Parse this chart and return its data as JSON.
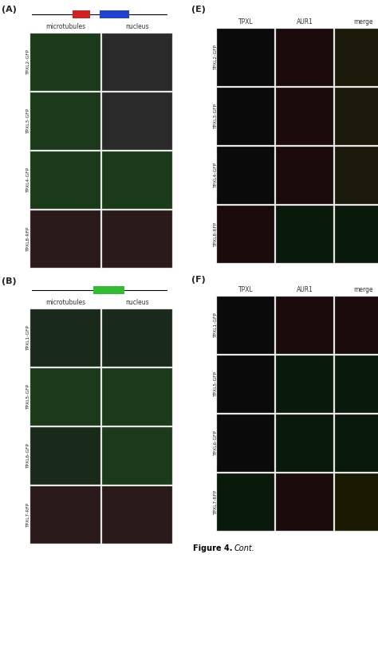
{
  "fig_width": 4.74,
  "fig_height": 8.18,
  "dpi": 100,
  "bg_color": "#ffffff",
  "panel_A_label": "(A)",
  "panel_B_label": "(B)",
  "panel_E_label": "(E)",
  "panel_F_label": "(F)",
  "section_A_col_labels": [
    "microtubules",
    "nucleus"
  ],
  "section_E_col_labels": [
    "TPXL",
    "AUR1",
    "merge"
  ],
  "section_F_col_labels": [
    "TPXL",
    "AUR1",
    "merge"
  ],
  "section_A_row_labels": [
    "TPXL2-GFP",
    "TPXL3-GFP",
    "TPXL4-GFP",
    "TPXL8-RFP"
  ],
  "section_B_row_labels": [
    "TPXL1-GFP",
    "TPXL5-GFP",
    "TPXL6-GFP",
    "TPXL7-RFP"
  ],
  "section_E_row_labels": [
    "TPXL2-GFP",
    "TPXL3-GFP",
    "TPXL4-GFP",
    "TPXL8-RFP"
  ],
  "section_F_row_labels": [
    "TPXL1-GFP",
    "TPXL5-GFP",
    "TPXL6-GFP",
    "TPXL7-RFP"
  ],
  "figure_caption": "Figure 4.",
  "figure_caption_italic": "Cont.",
  "cell_colors_A": [
    [
      "#1a3a1a",
      "#2a2a2a"
    ],
    [
      "#1a3a1a",
      "#2a2a2a"
    ],
    [
      "#1a3a1a",
      "#1a3a1a"
    ],
    [
      "#2a1a1a",
      "#2a1a1a"
    ]
  ],
  "cell_colors_B": [
    [
      "#1a2a1a",
      "#1a2a1a"
    ],
    [
      "#1a3a1a",
      "#1a3a1a"
    ],
    [
      "#1a2a1a",
      "#1a3a1a"
    ],
    [
      "#2a1a1a",
      "#2a1a1a"
    ]
  ],
  "cell_colors_E": [
    [
      "#0a0a0a",
      "#1a0a0a",
      "#1a1a0a"
    ],
    [
      "#0a0a0a",
      "#1a0a0a",
      "#1a1a0a"
    ],
    [
      "#0a0a0a",
      "#1a0a0a",
      "#1a1a0a"
    ],
    [
      "#1a0a0a",
      "#0a1a0a",
      "#0a1a0a"
    ]
  ],
  "cell_colors_F": [
    [
      "#0a0a0a",
      "#1a0a0a",
      "#1a0a0a"
    ],
    [
      "#0a0a0a",
      "#0a1a0a",
      "#0a1a0a"
    ],
    [
      "#0a0a0a",
      "#0a1a0a",
      "#0a1a0a"
    ],
    [
      "#0a1a0a",
      "#1a0a0a",
      "#1a1a00"
    ]
  ]
}
